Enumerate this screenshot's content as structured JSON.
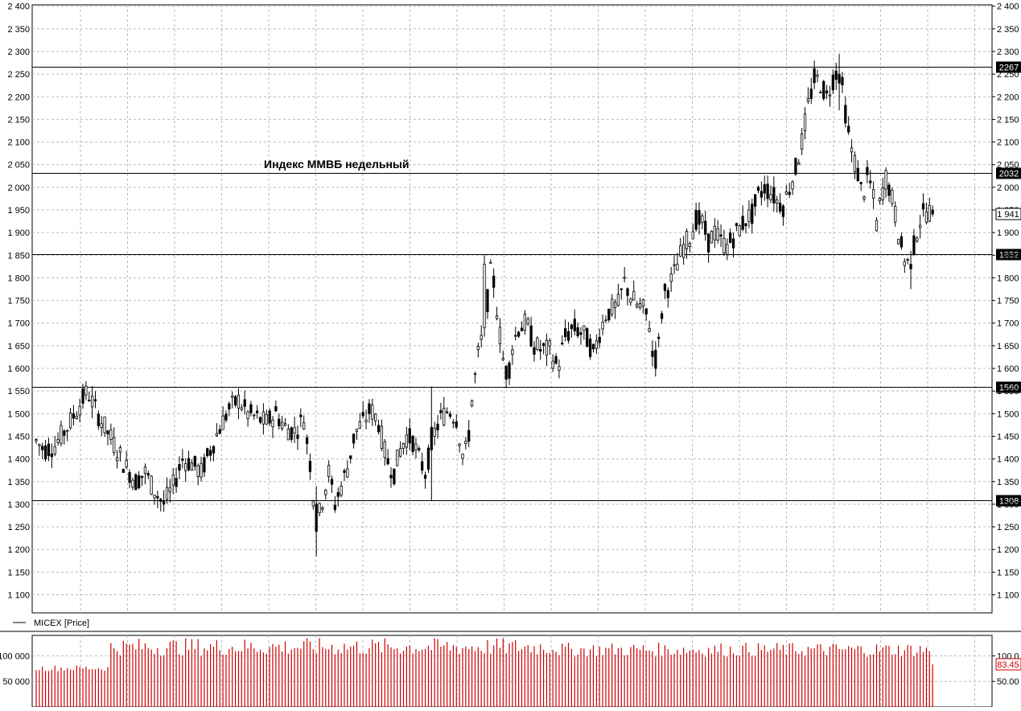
{
  "chart_data": {
    "type": "candlestick",
    "title": "Индекс ММВБ недельный",
    "legend": {
      "line_name": "MICEX [Price]"
    },
    "y_ticks": [
      2400,
      2350,
      2300,
      2250,
      2200,
      2150,
      2100,
      2050,
      2000,
      1950,
      1900,
      1850,
      1800,
      1750,
      1700,
      1650,
      1600,
      1550,
      1500,
      1450,
      1400,
      1350,
      1300,
      1250,
      1200,
      1150,
      1100
    ],
    "y_tick_labels": [
      "2 400",
      "2 350",
      "2 300",
      "2 250",
      "2 200",
      "2 150",
      "2 100",
      "2 050",
      "2 000",
      "1 950",
      "1 900",
      "1 850",
      "1 800",
      "1 750",
      "1 700",
      "1 650",
      "1 600",
      "1 550",
      "1 500",
      "1 450",
      "1 400",
      "1 350",
      "1 300",
      "1 250",
      "1 200",
      "1 150",
      "1 100"
    ],
    "ylim": [
      1060,
      2403
    ],
    "grid": true,
    "horizontal_levels": [
      {
        "value": 2267,
        "label": "2267"
      },
      {
        "value": 2032,
        "label": "2032"
      },
      {
        "value": 1852,
        "label": "1852"
      },
      {
        "value": 1560,
        "label": "1560"
      },
      {
        "value": 1308,
        "label": "1308"
      }
    ],
    "last_price_label": "1 941",
    "volume": {
      "color": "#cc0000",
      "left_tick_labels": [
        {
          "value": 100000,
          "label": "100 000"
        },
        {
          "value": 50000,
          "label": "50 000"
        }
      ],
      "right_tick_labels": [
        {
          "value": 100000,
          "label": "100.0"
        },
        {
          "value": 50000,
          "label": "50.00"
        }
      ],
      "last_value_label": "83.45",
      "ylim": [
        0,
        140000
      ]
    },
    "candles": [],
    "volumes": []
  }
}
